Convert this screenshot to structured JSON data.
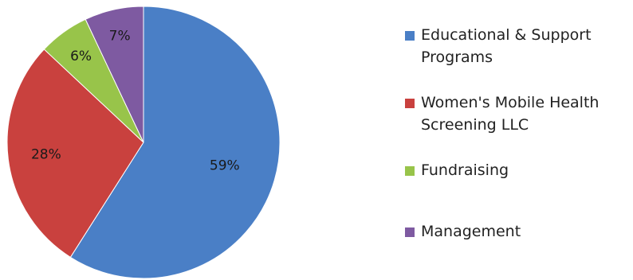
{
  "chart_data": {
    "type": "pie",
    "title": "",
    "slices": [
      {
        "label": "Educational & Support Programs",
        "value": 59,
        "display": "59%",
        "color": "#4a7fc6"
      },
      {
        "label": "Women's Mobile  Health Screening LLC",
        "value": 28,
        "display": "28%",
        "color": "#c9413e"
      },
      {
        "label": "Fundraising",
        "value": 6,
        "display": "6%",
        "color": "#98c44a"
      },
      {
        "label": "Management",
        "value": 7,
        "display": "7%",
        "color": "#7e5aa1"
      }
    ],
    "start_angle_deg": 0,
    "direction": "clockwise",
    "legend_position": "right"
  }
}
